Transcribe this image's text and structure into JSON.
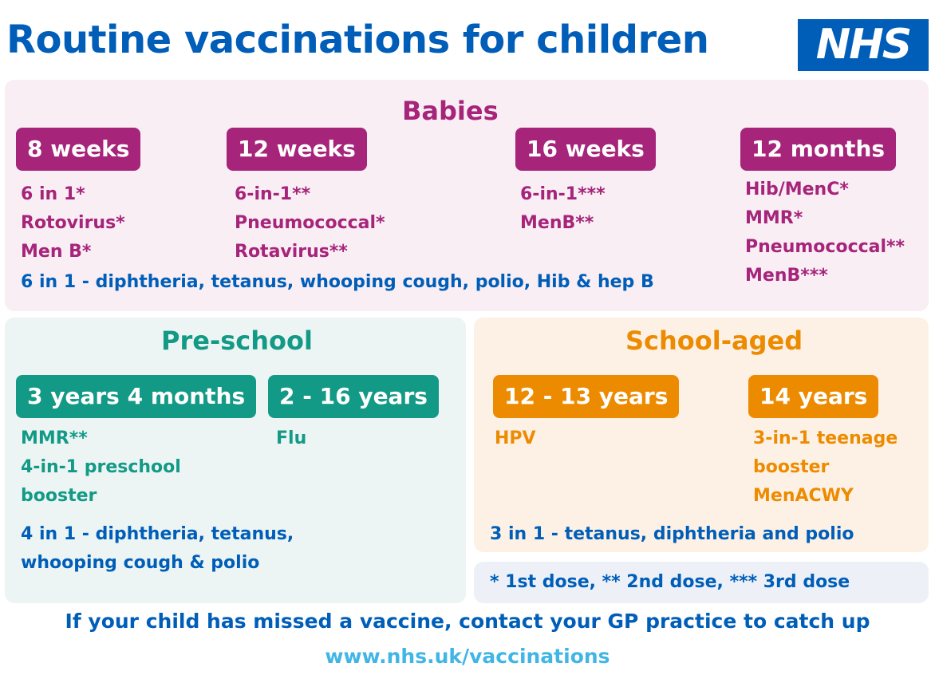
{
  "title": "Routine vaccinations for children",
  "logo_text": "NHS",
  "colors": {
    "blue": "#005eb8",
    "pink": "#a6247a",
    "teal": "#139a86",
    "orange": "#ed8b00",
    "light_blue": "#41b6e6"
  },
  "babies": {
    "title": "Babies",
    "columns": [
      {
        "age": "8 weeks",
        "vaccines": [
          "6 in 1*",
          "Rotovirus*",
          "Men B*"
        ]
      },
      {
        "age": "12 weeks",
        "vaccines": [
          "6-in-1**",
          "Pneumococcal*",
          "Rotavirus**"
        ]
      },
      {
        "age": "16 weeks",
        "vaccines": [
          "6-in-1***",
          "MenB**"
        ]
      },
      {
        "age": "12 months",
        "vaccines": [
          "Hib/MenC*",
          "MMR*",
          "Pneumococcal**",
          "MenB***"
        ]
      }
    ],
    "note": "6 in 1 - diphtheria, tetanus, whooping cough, polio, Hib & hep B"
  },
  "preschool": {
    "title": "Pre-school",
    "columns": [
      {
        "age": "3 years 4 months",
        "vaccines": [
          "MMR**",
          "4-in-1 preschool",
          "booster"
        ]
      },
      {
        "age": "2 - 16 years",
        "vaccines": [
          "Flu"
        ]
      }
    ],
    "note_lines": [
      "4 in 1 - diphtheria, tetanus,",
      "whooping cough & polio"
    ]
  },
  "school": {
    "title": "School-aged",
    "columns": [
      {
        "age": "12 - 13 years",
        "vaccines": [
          "HPV"
        ]
      },
      {
        "age": "14 years",
        "vaccines": [
          "3-in-1 teenage",
          "booster",
          "MenACWY"
        ]
      }
    ],
    "note": "3 in 1 - tetanus, diphtheria and polio"
  },
  "legend": "* 1st dose, ** 2nd dose, *** 3rd dose",
  "footer": {
    "message": "If your child has missed a vaccine, contact your GP practice to catch up",
    "url": "www.nhs.uk/vaccinations"
  }
}
